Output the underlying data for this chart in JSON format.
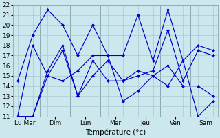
{
  "xlabel": "Température (°c)",
  "ylim": [
    11,
    22
  ],
  "background_color": "#cce8ee",
  "grid_color": "#aac8d0",
  "line_color": "#0000cc",
  "major_tick_labels": [
    "Lu Mar",
    "Dim",
    "Lun",
    "Mer",
    "Jeu",
    "Ven",
    "Sam"
  ],
  "major_tick_positions": [
    0.5,
    2.5,
    4.5,
    6.5,
    8.5,
    10.5,
    12.5
  ],
  "minor_tick_positions": [
    0,
    1,
    2,
    3,
    4,
    5,
    6,
    7,
    8,
    9,
    10,
    11,
    12,
    13
  ],
  "separator_positions": [
    1.5,
    3.5,
    5.5,
    7.5,
    9.5,
    11.5
  ],
  "series": [
    [
      14.5,
      19.0,
      21.5,
      20.0,
      17.0,
      20.0,
      17.0,
      17.0,
      21.0,
      16.5,
      21.5,
      16.5,
      18.0,
      17.5
    ],
    [
      11.0,
      18.0,
      15.0,
      14.5,
      15.5,
      17.0,
      17.0,
      12.5,
      13.5,
      15.0,
      14.0,
      16.5,
      11.0,
      12.5
    ],
    [
      11.0,
      11.0,
      15.5,
      18.0,
      13.0,
      15.0,
      16.5,
      14.5,
      15.5,
      15.0,
      16.0,
      14.0,
      14.0,
      13.0
    ],
    [
      11.0,
      11.0,
      15.0,
      17.5,
      13.0,
      16.5,
      14.5,
      14.5,
      15.0,
      15.5,
      19.5,
      14.5,
      17.5,
      17.0
    ]
  ],
  "x_positions": [
    0,
    1,
    2,
    3,
    4,
    5,
    6,
    7,
    8,
    9,
    10,
    11,
    12,
    13
  ],
  "marker": "D",
  "markersize": 2.0,
  "linewidth": 0.85,
  "xlabel_fontsize": 7.5,
  "tick_fontsize": 6.5
}
